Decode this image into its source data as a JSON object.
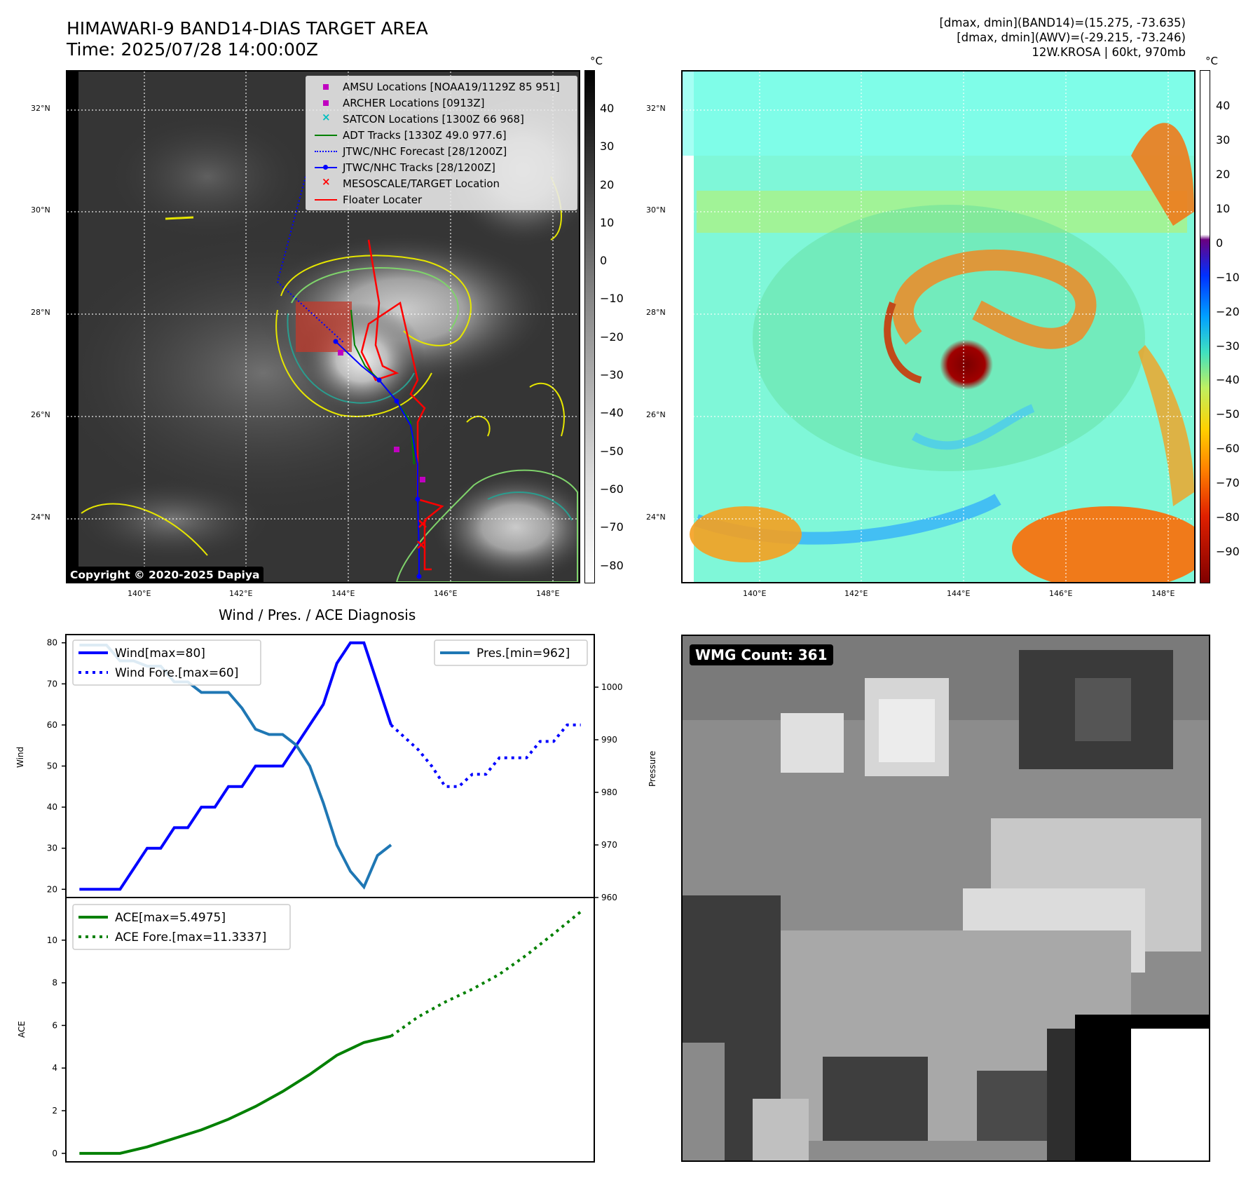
{
  "header": {
    "title_line1": "HIMAWARI-9 BAND14-DIAS TARGET AREA",
    "title_line2": "Time: 2025/07/28 14:00:00Z",
    "info_line1": "[dmax, dmin](BAND14)=(15.275, -73.635)",
    "info_line2": "[dmax, dmin](AWV)=(-29.215, -73.246)",
    "info_line3": "12W.KROSA | 60kt, 970mb"
  },
  "map": {
    "lat_labels": [
      "32°N",
      "30°N",
      "28°N",
      "26°N",
      "24°N"
    ],
    "lon_labels": [
      "140°E",
      "142°E",
      "144°E",
      "146°E",
      "148°E"
    ],
    "copyright": "Copyright © 2020-2025 Dapiya",
    "legend": [
      {
        "label": "AMSU Locations [NOAA19/1129Z 85 951]",
        "color": "#c000c0",
        "marker": "square"
      },
      {
        "label": "ARCHER Locations [0913Z]",
        "color": "#c000c0",
        "marker": "square"
      },
      {
        "label": "SATCON Locations [1300Z 66 968]",
        "color": "#00bfbf",
        "marker": "x"
      },
      {
        "label": "ADT Tracks [1330Z 49.0 977.6]",
        "color": "#008000",
        "marker": "line"
      },
      {
        "label": "JTWC/NHC Forecast [28/1200Z]",
        "color": "#0000ff",
        "marker": "dotted"
      },
      {
        "label": "JTWC/NHC Tracks [28/1200Z]",
        "color": "#0000ff",
        "marker": "line-dot"
      },
      {
        "label": "MESOSCALE/TARGET Location",
        "color": "#ff0000",
        "marker": "x"
      },
      {
        "label": "Floater Locater",
        "color": "#ff0000",
        "marker": "line"
      }
    ],
    "colorbar_unit": "°C",
    "gray_colorbar_ticks": [
      "40",
      "30",
      "20",
      "10",
      "0",
      "−10",
      "−20",
      "−30",
      "−40",
      "−50",
      "−60",
      "−70",
      "−80"
    ],
    "color_colorbar_ticks": [
      "40",
      "30",
      "20",
      "10",
      "0",
      "−10",
      "−20",
      "−30",
      "−40",
      "−50",
      "−60",
      "−70",
      "−80",
      "−90"
    ]
  },
  "diag": {
    "title": "Wind / Pres. / ACE Diagnosis",
    "wind_ylabel": "Wind",
    "pres_ylabel": "Pressure",
    "ace_ylabel": "ACE",
    "wmg_label": "WMG Count: 361"
  },
  "chart_data": [
    {
      "type": "line",
      "title": "Wind / Pres. / ACE Diagnosis",
      "ylabel": "Wind",
      "ylim": [
        18,
        82
      ],
      "y_ticks": [
        20,
        30,
        40,
        50,
        60,
        70,
        80
      ],
      "series": [
        {
          "name": "Wind[max=80]",
          "color": "#0000ff",
          "style": "solid",
          "x": [
            0,
            1,
            2,
            3,
            4,
            5,
            6,
            7,
            8,
            9,
            10,
            11,
            12,
            13,
            14,
            15,
            16,
            17,
            18,
            19,
            20,
            21,
            22,
            23
          ],
          "values": [
            20,
            20,
            20,
            20,
            25,
            30,
            30,
            35,
            35,
            40,
            40,
            45,
            45,
            50,
            50,
            50,
            55,
            60,
            65,
            75,
            80,
            80,
            70,
            60
          ]
        },
        {
          "name": "Wind Fore.[max=60]",
          "color": "#0000ff",
          "style": "dotted",
          "x": [
            23,
            24,
            25,
            26,
            27,
            28,
            29,
            30,
            31,
            32,
            33,
            34,
            35,
            36,
            37
          ],
          "values": [
            60,
            57,
            54,
            50,
            45,
            45,
            48,
            48,
            52,
            52,
            52,
            56,
            56,
            60,
            60
          ]
        }
      ]
    },
    {
      "type": "line",
      "ylabel": "Pressure",
      "ylim": [
        960,
        1010
      ],
      "y_ticks": [
        960,
        970,
        980,
        990,
        1000
      ],
      "series": [
        {
          "name": "Pres.[min=962]",
          "color": "#1f77b4",
          "style": "solid",
          "x": [
            0,
            1,
            2,
            3,
            4,
            5,
            6,
            7,
            8,
            9,
            10,
            11,
            12,
            13,
            14,
            15,
            16,
            17,
            18,
            19,
            20,
            21,
            22,
            23
          ],
          "values": [
            1008,
            1008,
            1008,
            1005,
            1005,
            1004,
            1004,
            1001,
            1001,
            999,
            999,
            999,
            996,
            992,
            991,
            991,
            989,
            985,
            978,
            970,
            965,
            962,
            968,
            970
          ]
        }
      ]
    },
    {
      "type": "line",
      "ylabel": "ACE",
      "ylim": [
        -0.4,
        12
      ],
      "y_ticks": [
        0,
        2,
        4,
        6,
        8,
        10
      ],
      "series": [
        {
          "name": "ACE[max=5.4975]",
          "color": "#008000",
          "style": "solid",
          "x": [
            0,
            3,
            5,
            7,
            9,
            11,
            13,
            15,
            17,
            19,
            21,
            23
          ],
          "values": [
            0,
            0,
            0.3,
            0.7,
            1.1,
            1.6,
            2.2,
            2.9,
            3.7,
            4.6,
            5.2,
            5.4975
          ]
        },
        {
          "name": "ACE Fore.[max=11.3337]",
          "color": "#008000",
          "style": "dotted",
          "x": [
            23,
            25,
            27,
            29,
            31,
            33,
            35,
            37
          ],
          "values": [
            5.4975,
            6.4,
            7.1,
            7.7,
            8.4,
            9.3,
            10.3,
            11.3337
          ]
        }
      ]
    }
  ]
}
